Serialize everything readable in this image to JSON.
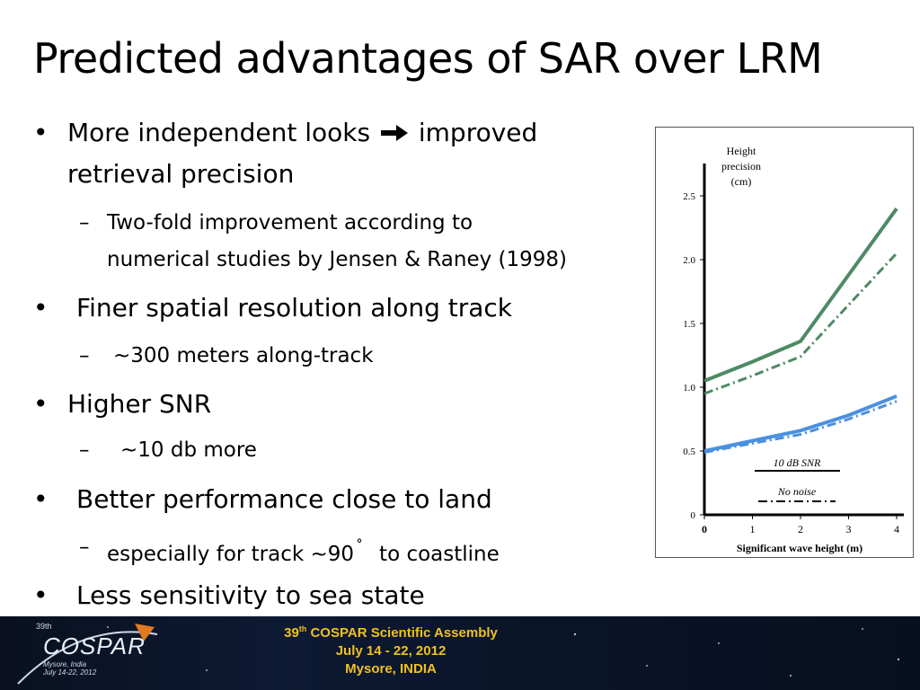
{
  "slide": {
    "title": "Predicted advantages of SAR over LRM",
    "bullets": [
      {
        "line1_before_arrow": "More independent looks",
        "line1_after_arrow": "improved",
        "line2": "retrieval precision",
        "arrow_icon": "right-arrow-icon",
        "sub": [
          {
            "line1": "Two-fold improvement  according to",
            "line2": "numerical studies by Jensen & Raney (1998)"
          }
        ]
      },
      {
        "text": "Finer spatial resolution along track",
        "sub": [
          {
            "text": "~300 meters along-track"
          }
        ]
      },
      {
        "text": "Higher SNR",
        "sub": [
          {
            "text": "~10 db more"
          }
        ]
      },
      {
        "text": "Better performance close to land",
        "sub": [
          {
            "before_degree": "especially for track ~90",
            "degree_symbol": "˚",
            "after_degree": "to coastline"
          }
        ]
      },
      {
        "text": "Less sensitivity to sea state"
      }
    ],
    "bullet_symbol": "•",
    "dash_symbol": "–"
  },
  "chart_data": {
    "type": "line",
    "ylabel": [
      "Height",
      "precision",
      "(cm)"
    ],
    "xlabel": "Significant wave height (m)",
    "xlim": [
      0,
      4
    ],
    "ylim": [
      0,
      2.5
    ],
    "x_ticks": [
      "0",
      "1",
      "2",
      "3",
      "4"
    ],
    "y_ticks": [
      "0",
      "0.5",
      "1.0",
      "1.5",
      "2.0",
      "2.5"
    ],
    "legend_entries": [
      {
        "label": "10 dB SNR",
        "style": "solid"
      },
      {
        "label": "No noise",
        "style": "dash-dot"
      }
    ],
    "series": [
      {
        "color": "#4e8a64",
        "style": "solid",
        "x": [
          0,
          1,
          2,
          4
        ],
        "y": [
          1.05,
          1.2,
          1.36,
          2.4
        ]
      },
      {
        "color": "#4e8a64",
        "style": "dash-dot",
        "x": [
          0,
          1,
          2,
          4
        ],
        "y": [
          0.95,
          1.09,
          1.24,
          2.05
        ]
      },
      {
        "color": "#4a90e0",
        "style": "solid",
        "x": [
          0,
          1,
          2,
          3,
          4
        ],
        "y": [
          0.5,
          0.58,
          0.66,
          0.78,
          0.93
        ]
      },
      {
        "color": "#4a90e0",
        "style": "dash-dot",
        "x": [
          0,
          1,
          2,
          3,
          4
        ],
        "y": [
          0.49,
          0.56,
          0.63,
          0.75,
          0.89
        ]
      }
    ]
  },
  "footer": {
    "logo_text": "COSPAR",
    "logo_small": "39th",
    "logo_sub_line1": "Mysore, India",
    "logo_sub_line2": "July 14-22, 2012",
    "event_line1_pre": "39",
    "event_line1_sup": "th",
    "event_line1_post": " COSPAR Scientific Assembly",
    "event_line2": "July 14 - 22, 2012",
    "event_line3": "Mysore, INDIA",
    "accent_color": "#f0c020"
  }
}
